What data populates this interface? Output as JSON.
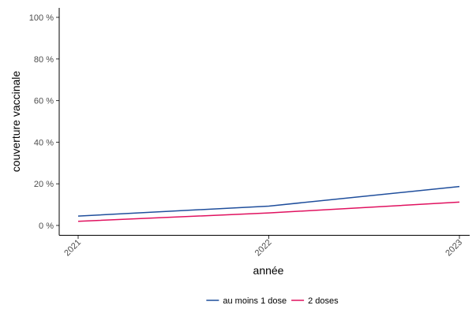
{
  "chart_data": {
    "type": "line",
    "xlabel": "année",
    "ylabel": "couverture vaccinale",
    "x": [
      "2021",
      "2022",
      "2023"
    ],
    "ylim": [
      0,
      100
    ],
    "yticks": [
      0,
      20,
      40,
      60,
      80,
      100
    ],
    "ytick_labels": [
      "0 %",
      "20 %",
      "40 %",
      "60 %",
      "80 %",
      "100 %"
    ],
    "grid": false,
    "legend_position": "bottom",
    "series": [
      {
        "name": "au moins 1 dose",
        "color": "#1f4e9c",
        "values": [
          4.5,
          9.3,
          18.7
        ]
      },
      {
        "name": "2 doses",
        "color": "#e0115f",
        "values": [
          2.0,
          6.0,
          11.2
        ]
      }
    ]
  }
}
